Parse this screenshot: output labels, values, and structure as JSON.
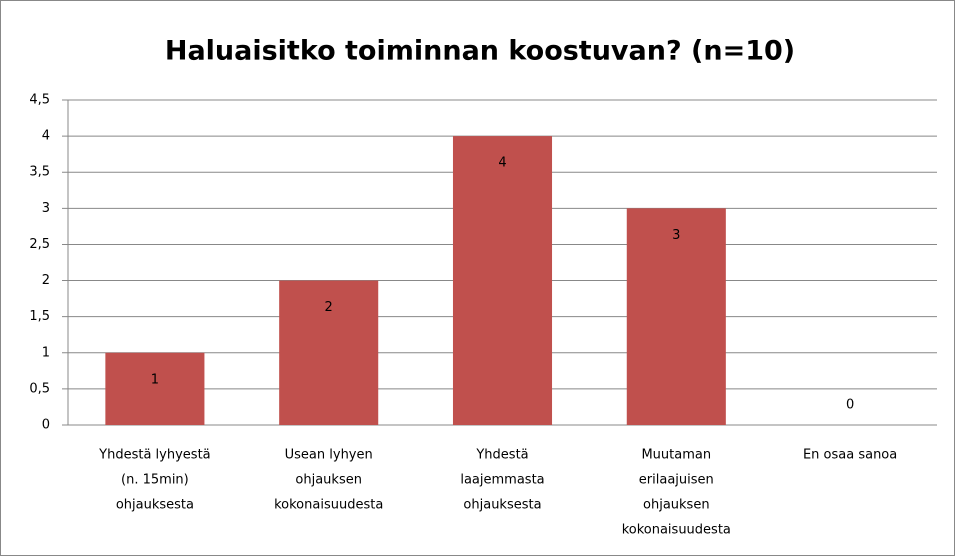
{
  "chart_data": {
    "type": "bar",
    "title": "Haluaisitko toiminnan koostuvan? (n=10)",
    "categories": [
      [
        "Yhdestä lyhyestä",
        "(n. 15min)",
        "ohjauksesta"
      ],
      [
        "Usean lyhyen",
        "ohjauksen",
        "kokonaisuudesta"
      ],
      [
        "Yhdestä",
        "laajemmasta",
        "ohjauksesta"
      ],
      [
        "Muutaman",
        "erilaajuisen",
        "ohjauksen",
        "kokonaisuudesta"
      ],
      [
        "En osaa sanoa"
      ]
    ],
    "values": [
      1,
      2,
      4,
      3,
      0
    ],
    "color": "#c0504d",
    "ylim": [
      0,
      4.5
    ],
    "yticks": [
      0,
      {
        "value": 0.5,
        "label": "0,5"
      },
      1,
      {
        "value": 1.5,
        "label": "1,5"
      },
      2,
      {
        "value": 2.5,
        "label": "2,5"
      },
      3,
      {
        "value": 3.5,
        "label": "3,5"
      },
      4,
      {
        "value": 4.5,
        "label": "4,5"
      }
    ],
    "grid": true
  }
}
